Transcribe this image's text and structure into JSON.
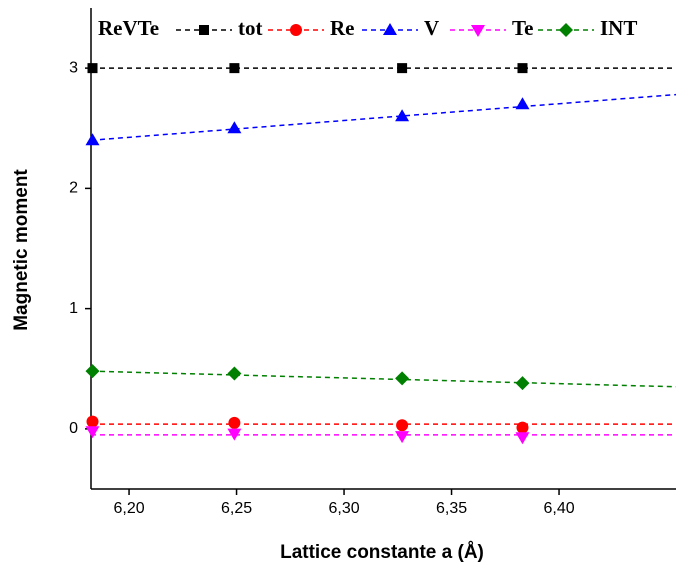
{
  "chart_data": {
    "type": "line",
    "legend_title": "ReVTe",
    "xlabel": "Lattice constante a (Å)",
    "ylabel": "Magnetic moment",
    "x": [
      6.183,
      6.249,
      6.327,
      6.383
    ],
    "xlim": [
      6.1823,
      6.4544
    ],
    "xticks": [
      {
        "value": 6.2,
        "label": "6,20"
      },
      {
        "value": 6.25,
        "label": "6,25"
      },
      {
        "value": 6.3,
        "label": "6,30"
      },
      {
        "value": 6.35,
        "label": "6,35"
      },
      {
        "value": 6.4,
        "label": "6,40"
      }
    ],
    "ylim": [
      -0.5,
      3.5
    ],
    "yticks": [
      0,
      1,
      2,
      3
    ],
    "series": [
      {
        "name": "tot",
        "color": "#000000",
        "marker": "square",
        "values": [
          3,
          3,
          3,
          3
        ],
        "fit": [
          3,
          3
        ]
      },
      {
        "name": "Re",
        "color": "#ff0000",
        "marker": "circle",
        "values": [
          0.06,
          0.05,
          0.03,
          0.01
        ],
        "fit": [
          0.04,
          0.04
        ]
      },
      {
        "name": "V",
        "color": "#0000ff",
        "marker": "triangle-up",
        "values": [
          2.4,
          2.5,
          2.6,
          2.7
        ],
        "fit": [
          2.4,
          2.78
        ]
      },
      {
        "name": "Te",
        "color": "#ff00ff",
        "marker": "triangle-down",
        "values": [
          -0.02,
          -0.04,
          -0.06,
          -0.07
        ],
        "fit": [
          -0.05,
          -0.05
        ]
      },
      {
        "name": "INT",
        "color": "#008000",
        "marker": "diamond",
        "values": [
          0.48,
          0.46,
          0.42,
          0.38
        ],
        "fit": [
          0.48,
          0.35
        ]
      }
    ]
  }
}
